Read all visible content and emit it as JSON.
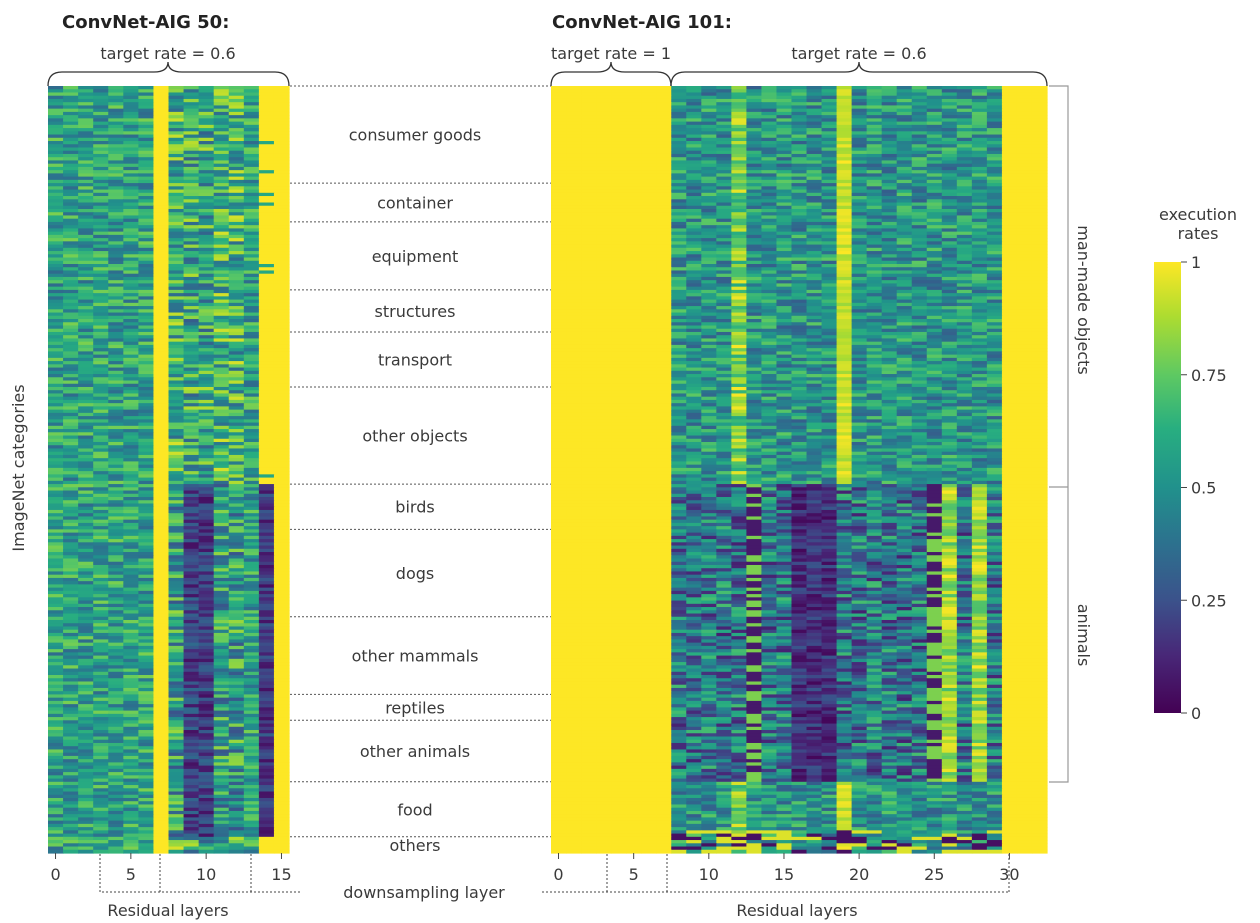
{
  "chart_data": [
    {
      "type": "heatmap",
      "title": "ConvNet-AIG 50:",
      "xlabel": "Residual layers",
      "ylabel": "ImageNet categories",
      "x_ticks": [
        0,
        5,
        10,
        15
      ],
      "target_rates": [
        {
          "label": "target rate = 0.6",
          "layers": [
            0,
            15
          ]
        }
      ],
      "downsampling_layers": [
        3,
        7,
        13
      ],
      "always_on_layers": [
        7,
        15
      ],
      "n_layers": 16,
      "values_by_group": [
        {
          "group": "consumer goods",
          "pattern": "mid (0.4-0.75) on most layers, yellow on layer 7 and 15"
        },
        {
          "group": "animals/food",
          "pattern": "low (~0.1) on layers 9-10 and 14"
        }
      ],
      "value_range": [
        0,
        1
      ]
    },
    {
      "type": "heatmap",
      "title": "ConvNet-AIG 101:",
      "xlabel": "Residual layers",
      "x_ticks": [
        0,
        5,
        10,
        15,
        20,
        25,
        30
      ],
      "target_rates": [
        {
          "label": "target rate = 1",
          "layers": [
            0,
            6
          ]
        },
        {
          "label": "target rate = 0.6",
          "layers": [
            7,
            32
          ]
        }
      ],
      "downsampling_layers": [
        3,
        7,
        30
      ],
      "n_layers": 33,
      "value_range": [
        0,
        1
      ]
    }
  ],
  "categories": [
    {
      "label": "consumer goods",
      "rows": 30
    },
    {
      "label": "container",
      "rows": 12
    },
    {
      "label": "equipment",
      "rows": 21
    },
    {
      "label": "structures",
      "rows": 13
    },
    {
      "label": "transport",
      "rows": 17
    },
    {
      "label": "other objects",
      "rows": 30
    },
    {
      "label": "birds",
      "rows": 14
    },
    {
      "label": "dogs",
      "rows": 27
    },
    {
      "label": "other mammals",
      "rows": 24
    },
    {
      "label": "reptiles",
      "rows": 8
    },
    {
      "label": "other animals",
      "rows": 19
    },
    {
      "label": "food",
      "rows": 17
    },
    {
      "label": "others",
      "rows": 5
    }
  ],
  "supergroups": [
    {
      "label": "man-made objects"
    },
    {
      "label": "animals"
    }
  ],
  "downsampling_label": "downsampling layer",
  "colorbar": {
    "title_line1": "execution",
    "title_line2": "rates",
    "ticks": [
      {
        "value": 1,
        "label": "1"
      },
      {
        "value": 0.75,
        "label": "0.75"
      },
      {
        "value": 0.5,
        "label": "0.5"
      },
      {
        "value": 0.25,
        "label": "0.25"
      },
      {
        "value": 0,
        "label": "0"
      }
    ],
    "colormap": "viridis",
    "stops": [
      "#440154",
      "#3b528b",
      "#21918c",
      "#5ec962",
      "#fde725"
    ]
  }
}
